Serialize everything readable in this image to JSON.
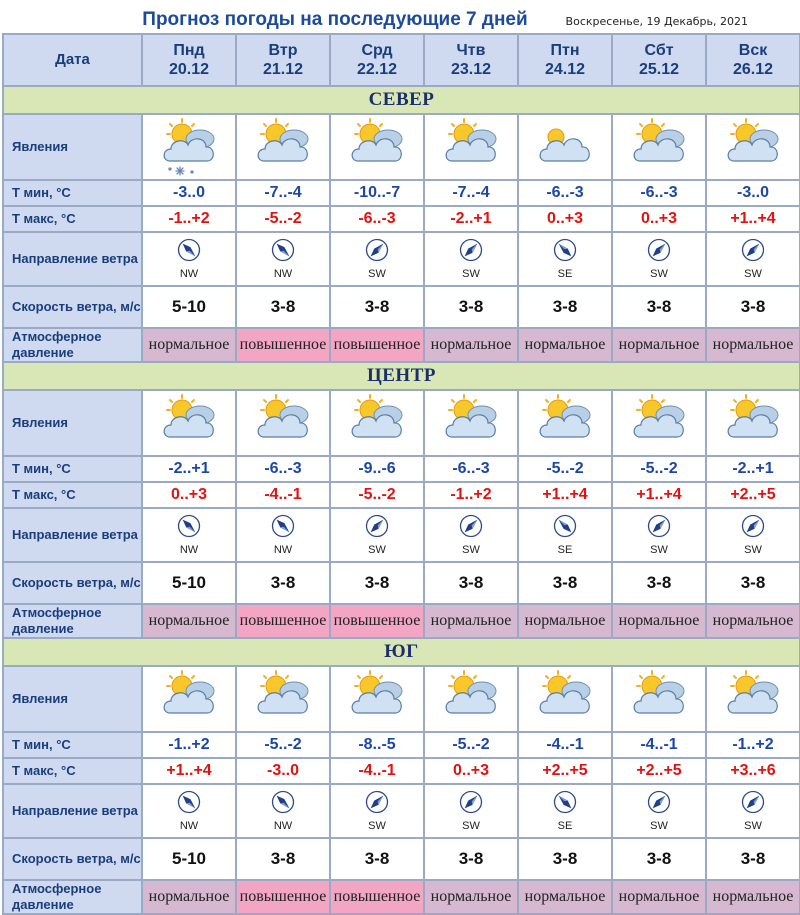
{
  "title": "Прогноз погоды на последующие 7 дней",
  "date_line": "Воскресенье, 19 Декабрь, 2021",
  "colors": {
    "header_bg": "#cfdaf0",
    "region_bg": "#d9e6b5",
    "pressure_normal": "#d6b9d0",
    "pressure_high": "#f2a6c4",
    "tmin_color": "#1c46a8",
    "tmax_color": "#e01212"
  },
  "header_label": "Дата",
  "row_labels": {
    "phenomena": "Явления",
    "tmin": "Т мин, °С",
    "tmax": "Т макс, °С",
    "dir": "Направление ветра",
    "speed": "Скорость ветра, м/с",
    "pressure": "Атмосферное давление"
  },
  "days": [
    {
      "name": "Пнд",
      "date": "20.12"
    },
    {
      "name": "Втр",
      "date": "21.12"
    },
    {
      "name": "Срд",
      "date": "22.12"
    },
    {
      "name": "Чтв",
      "date": "23.12"
    },
    {
      "name": "Птн",
      "date": "24.12"
    },
    {
      "name": "Сбт",
      "date": "25.12"
    },
    {
      "name": "Вск",
      "date": "26.12"
    }
  ],
  "regions": [
    {
      "name": "СЕВЕР",
      "icons": [
        "snow-cloud-icon",
        "partly-cloudy-icon",
        "partly-cloudy-icon",
        "partly-cloudy-icon",
        "cloudy-icon",
        "partly-cloudy-icon",
        "partly-cloudy-icon"
      ],
      "tmin": [
        "-3..0",
        "-7..-4",
        "-10..-7",
        "-7..-4",
        "-6..-3",
        "-6..-3",
        "-3..0"
      ],
      "tmax": [
        "-1..+2",
        "-5..-2",
        "-6..-3",
        "-2..+1",
        "0..+3",
        "0..+3",
        "+1..+4"
      ],
      "dir": [
        "NW",
        "NW",
        "SW",
        "SW",
        "SE",
        "SW",
        "SW"
      ],
      "speed": [
        "5-10",
        "3-8",
        "3-8",
        "3-8",
        "3-8",
        "3-8",
        "3-8"
      ],
      "pressure": [
        "нормальное",
        "повышенное",
        "повышенное",
        "нормальное",
        "нормальное",
        "нормальное",
        "нормальное"
      ],
      "pressure_level": [
        "normal",
        "high",
        "high",
        "normal",
        "normal",
        "normal",
        "normal"
      ]
    },
    {
      "name": "ЦЕНТР",
      "icons": [
        "partly-cloudy-icon",
        "partly-cloudy-icon",
        "partly-cloudy-icon",
        "partly-cloudy-icon",
        "partly-cloudy-icon",
        "partly-cloudy-icon",
        "partly-cloudy-icon"
      ],
      "tmin": [
        "-2..+1",
        "-6..-3",
        "-9..-6",
        "-6..-3",
        "-5..-2",
        "-5..-2",
        "-2..+1"
      ],
      "tmax": [
        "0..+3",
        "-4..-1",
        "-5..-2",
        "-1..+2",
        "+1..+4",
        "+1..+4",
        "+2..+5"
      ],
      "dir": [
        "NW",
        "NW",
        "SW",
        "SW",
        "SE",
        "SW",
        "SW"
      ],
      "speed": [
        "5-10",
        "3-8",
        "3-8",
        "3-8",
        "3-8",
        "3-8",
        "3-8"
      ],
      "pressure": [
        "нормальное",
        "повышенное",
        "повышенное",
        "нормальное",
        "нормальное",
        "нормальное",
        "нормальное"
      ],
      "pressure_level": [
        "normal",
        "high",
        "high",
        "normal",
        "normal",
        "normal",
        "normal"
      ]
    },
    {
      "name": "ЮГ",
      "icons": [
        "partly-cloudy-icon",
        "partly-cloudy-icon",
        "partly-cloudy-icon",
        "partly-cloudy-icon",
        "partly-cloudy-icon",
        "partly-cloudy-icon",
        "partly-cloudy-icon"
      ],
      "tmin": [
        "-1..+2",
        "-5..-2",
        "-8..-5",
        "-5..-2",
        "-4..-1",
        "-4..-1",
        "-1..+2"
      ],
      "tmax": [
        "+1..+4",
        "-3..0",
        "-4..-1",
        "0..+3",
        "+2..+5",
        "+2..+5",
        "+3..+6"
      ],
      "dir": [
        "NW",
        "NW",
        "SW",
        "SW",
        "SE",
        "SW",
        "SW"
      ],
      "speed": [
        "5-10",
        "3-8",
        "3-8",
        "3-8",
        "3-8",
        "3-8",
        "3-8"
      ],
      "pressure": [
        "нормальное",
        "повышенное",
        "повышенное",
        "нормальное",
        "нормальное",
        "нормальное",
        "нормальное"
      ],
      "pressure_level": [
        "normal",
        "high",
        "high",
        "normal",
        "normal",
        "normal",
        "normal"
      ]
    }
  ]
}
